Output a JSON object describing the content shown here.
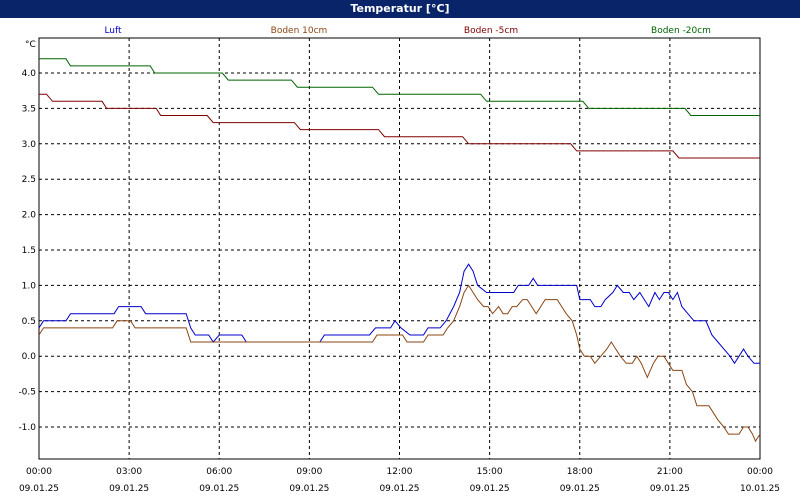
{
  "window": {
    "title": "Temperatur [°C]"
  },
  "colors": {
    "title_bar": "#0a246a",
    "grid": "#000000",
    "luft": "#0000cc",
    "boden_10": "#8b4513",
    "boden_5": "#800000",
    "boden_20": "#006400"
  },
  "chart_data": {
    "type": "line",
    "title": "Temperatur [°C]",
    "ylabel": "°C",
    "ylim": [
      -1.5,
      4.4
    ],
    "xlim": [
      0,
      24
    ],
    "y_ticks": [
      4.0,
      3.5,
      3.0,
      2.5,
      2.0,
      1.5,
      1.0,
      0.5,
      0.0,
      -0.5,
      -1.0
    ],
    "y_tick_labels": [
      "4.0",
      "3.5",
      "3.0",
      "2.5",
      "2.0",
      "1.5",
      "1.0",
      "0.5",
      "0.0",
      "-0.5",
      "-1.0"
    ],
    "x_ticks": [
      0,
      3,
      6,
      9,
      12,
      15,
      18,
      21,
      24
    ],
    "x_tick_labels": [
      [
        "00:00",
        "09.01.25"
      ],
      [
        "03:00",
        "09.01.25"
      ],
      [
        "06:00",
        "09.01.25"
      ],
      [
        "09:00",
        "09.01.25"
      ],
      [
        "12:00",
        "09.01.25"
      ],
      [
        "15:00",
        "09.01.25"
      ],
      [
        "18:00",
        "09.01.25"
      ],
      [
        "21:00",
        "09.01.25"
      ],
      [
        "00:00",
        "10.01.25"
      ]
    ],
    "grid": true,
    "legend_position": "top",
    "series": [
      {
        "name": "Luft",
        "color": "#0000cc",
        "points": [
          [
            0,
            0.4
          ],
          [
            0.15,
            0.5
          ],
          [
            0.9,
            0.5
          ],
          [
            1.05,
            0.6
          ],
          [
            2.5,
            0.6
          ],
          [
            2.65,
            0.7
          ],
          [
            3.4,
            0.7
          ],
          [
            3.55,
            0.6
          ],
          [
            4.9,
            0.6
          ],
          [
            5.05,
            0.4
          ],
          [
            5.2,
            0.3
          ],
          [
            5.65,
            0.3
          ],
          [
            5.8,
            0.2
          ],
          [
            6.0,
            0.3
          ],
          [
            6.75,
            0.3
          ],
          [
            6.9,
            0.2
          ],
          [
            9.35,
            0.2
          ],
          [
            9.5,
            0.3
          ],
          [
            11.0,
            0.3
          ],
          [
            11.2,
            0.4
          ],
          [
            11.7,
            0.4
          ],
          [
            11.85,
            0.5
          ],
          [
            12.05,
            0.4
          ],
          [
            12.35,
            0.3
          ],
          [
            12.8,
            0.3
          ],
          [
            12.95,
            0.4
          ],
          [
            13.35,
            0.4
          ],
          [
            13.55,
            0.5
          ],
          [
            13.8,
            0.7
          ],
          [
            14.0,
            0.9
          ],
          [
            14.15,
            1.2
          ],
          [
            14.3,
            1.3
          ],
          [
            14.45,
            1.2
          ],
          [
            14.6,
            1.0
          ],
          [
            14.9,
            0.9
          ],
          [
            15.8,
            0.9
          ],
          [
            15.95,
            1.0
          ],
          [
            16.3,
            1.0
          ],
          [
            16.45,
            1.1
          ],
          [
            16.6,
            1.0
          ],
          [
            17.9,
            1.0
          ],
          [
            18.0,
            0.8
          ],
          [
            18.35,
            0.8
          ],
          [
            18.5,
            0.7
          ],
          [
            18.7,
            0.7
          ],
          [
            18.85,
            0.8
          ],
          [
            19.1,
            0.9
          ],
          [
            19.25,
            1.0
          ],
          [
            19.45,
            0.9
          ],
          [
            19.65,
            0.9
          ],
          [
            19.8,
            0.8
          ],
          [
            20.0,
            0.9
          ],
          [
            20.15,
            0.8
          ],
          [
            20.3,
            0.7
          ],
          [
            20.5,
            0.9
          ],
          [
            20.65,
            0.8
          ],
          [
            20.8,
            0.9
          ],
          [
            20.95,
            0.9
          ],
          [
            21.1,
            0.8
          ],
          [
            21.25,
            0.9
          ],
          [
            21.4,
            0.7
          ],
          [
            21.6,
            0.6
          ],
          [
            21.8,
            0.5
          ],
          [
            22.2,
            0.5
          ],
          [
            22.4,
            0.3
          ],
          [
            22.6,
            0.2
          ],
          [
            22.8,
            0.1
          ],
          [
            23.0,
            0.0
          ],
          [
            23.15,
            -0.1
          ],
          [
            23.3,
            0.0
          ],
          [
            23.45,
            0.1
          ],
          [
            23.6,
            0.0
          ],
          [
            23.8,
            -0.1
          ],
          [
            24.0,
            -0.1
          ]
        ]
      },
      {
        "name": "Boden 10cm",
        "color": "#8b4513",
        "points": [
          [
            0,
            0.3
          ],
          [
            0.15,
            0.4
          ],
          [
            2.45,
            0.4
          ],
          [
            2.6,
            0.5
          ],
          [
            3.05,
            0.5
          ],
          [
            3.2,
            0.4
          ],
          [
            4.9,
            0.4
          ],
          [
            5.05,
            0.2
          ],
          [
            11.1,
            0.2
          ],
          [
            11.25,
            0.3
          ],
          [
            12.1,
            0.3
          ],
          [
            12.25,
            0.2
          ],
          [
            12.8,
            0.2
          ],
          [
            12.95,
            0.3
          ],
          [
            13.45,
            0.3
          ],
          [
            13.6,
            0.4
          ],
          [
            13.8,
            0.5
          ],
          [
            14.0,
            0.7
          ],
          [
            14.15,
            0.9
          ],
          [
            14.3,
            1.0
          ],
          [
            14.45,
            0.9
          ],
          [
            14.6,
            0.8
          ],
          [
            14.8,
            0.7
          ],
          [
            14.95,
            0.7
          ],
          [
            15.1,
            0.6
          ],
          [
            15.3,
            0.7
          ],
          [
            15.45,
            0.6
          ],
          [
            15.6,
            0.6
          ],
          [
            15.75,
            0.7
          ],
          [
            15.9,
            0.7
          ],
          [
            16.1,
            0.8
          ],
          [
            16.25,
            0.8
          ],
          [
            16.4,
            0.7
          ],
          [
            16.55,
            0.6
          ],
          [
            16.7,
            0.7
          ],
          [
            16.85,
            0.8
          ],
          [
            17.05,
            0.8
          ],
          [
            17.25,
            0.8
          ],
          [
            17.4,
            0.7
          ],
          [
            17.55,
            0.6
          ],
          [
            17.75,
            0.5
          ],
          [
            17.9,
            0.3
          ],
          [
            18.0,
            0.1
          ],
          [
            18.15,
            0.0
          ],
          [
            18.35,
            0.0
          ],
          [
            18.5,
            -0.1
          ],
          [
            18.7,
            0.0
          ],
          [
            18.9,
            0.1
          ],
          [
            19.05,
            0.2
          ],
          [
            19.2,
            0.1
          ],
          [
            19.35,
            0.0
          ],
          [
            19.55,
            -0.1
          ],
          [
            19.75,
            -0.1
          ],
          [
            19.9,
            0.0
          ],
          [
            20.05,
            -0.1
          ],
          [
            20.25,
            -0.3
          ],
          [
            20.45,
            -0.1
          ],
          [
            20.6,
            0.0
          ],
          [
            20.8,
            0.0
          ],
          [
            20.95,
            -0.1
          ],
          [
            21.1,
            -0.2
          ],
          [
            21.4,
            -0.2
          ],
          [
            21.55,
            -0.4
          ],
          [
            21.75,
            -0.5
          ],
          [
            21.9,
            -0.7
          ],
          [
            22.3,
            -0.7
          ],
          [
            22.45,
            -0.8
          ],
          [
            22.6,
            -0.9
          ],
          [
            22.8,
            -1.0
          ],
          [
            22.95,
            -1.1
          ],
          [
            23.3,
            -1.1
          ],
          [
            23.45,
            -1.0
          ],
          [
            23.6,
            -1.0
          ],
          [
            23.75,
            -1.1
          ],
          [
            23.85,
            -1.2
          ],
          [
            24.0,
            -1.1
          ]
        ]
      },
      {
        "name": "Boden -5cm",
        "color": "#800000",
        "points": [
          [
            0,
            3.7
          ],
          [
            0.25,
            3.7
          ],
          [
            0.45,
            3.6
          ],
          [
            2.1,
            3.6
          ],
          [
            2.25,
            3.5
          ],
          [
            3.9,
            3.5
          ],
          [
            4.05,
            3.4
          ],
          [
            5.6,
            3.4
          ],
          [
            5.8,
            3.3
          ],
          [
            8.5,
            3.3
          ],
          [
            8.7,
            3.2
          ],
          [
            11.3,
            3.2
          ],
          [
            11.5,
            3.1
          ],
          [
            14.1,
            3.1
          ],
          [
            14.3,
            3.0
          ],
          [
            17.7,
            3.0
          ],
          [
            17.9,
            2.9
          ],
          [
            21.1,
            2.9
          ],
          [
            21.3,
            2.8
          ],
          [
            24.0,
            2.8
          ]
        ]
      },
      {
        "name": "Boden -20cm",
        "color": "#006400",
        "points": [
          [
            0,
            4.2
          ],
          [
            0.9,
            4.2
          ],
          [
            1.05,
            4.1
          ],
          [
            3.7,
            4.1
          ],
          [
            3.85,
            4.0
          ],
          [
            6.1,
            4.0
          ],
          [
            6.3,
            3.9
          ],
          [
            8.4,
            3.9
          ],
          [
            8.6,
            3.8
          ],
          [
            11.1,
            3.8
          ],
          [
            11.3,
            3.7
          ],
          [
            14.7,
            3.7
          ],
          [
            14.9,
            3.6
          ],
          [
            18.1,
            3.6
          ],
          [
            18.3,
            3.5
          ],
          [
            21.5,
            3.5
          ],
          [
            21.7,
            3.4
          ],
          [
            24.0,
            3.4
          ]
        ]
      }
    ]
  }
}
